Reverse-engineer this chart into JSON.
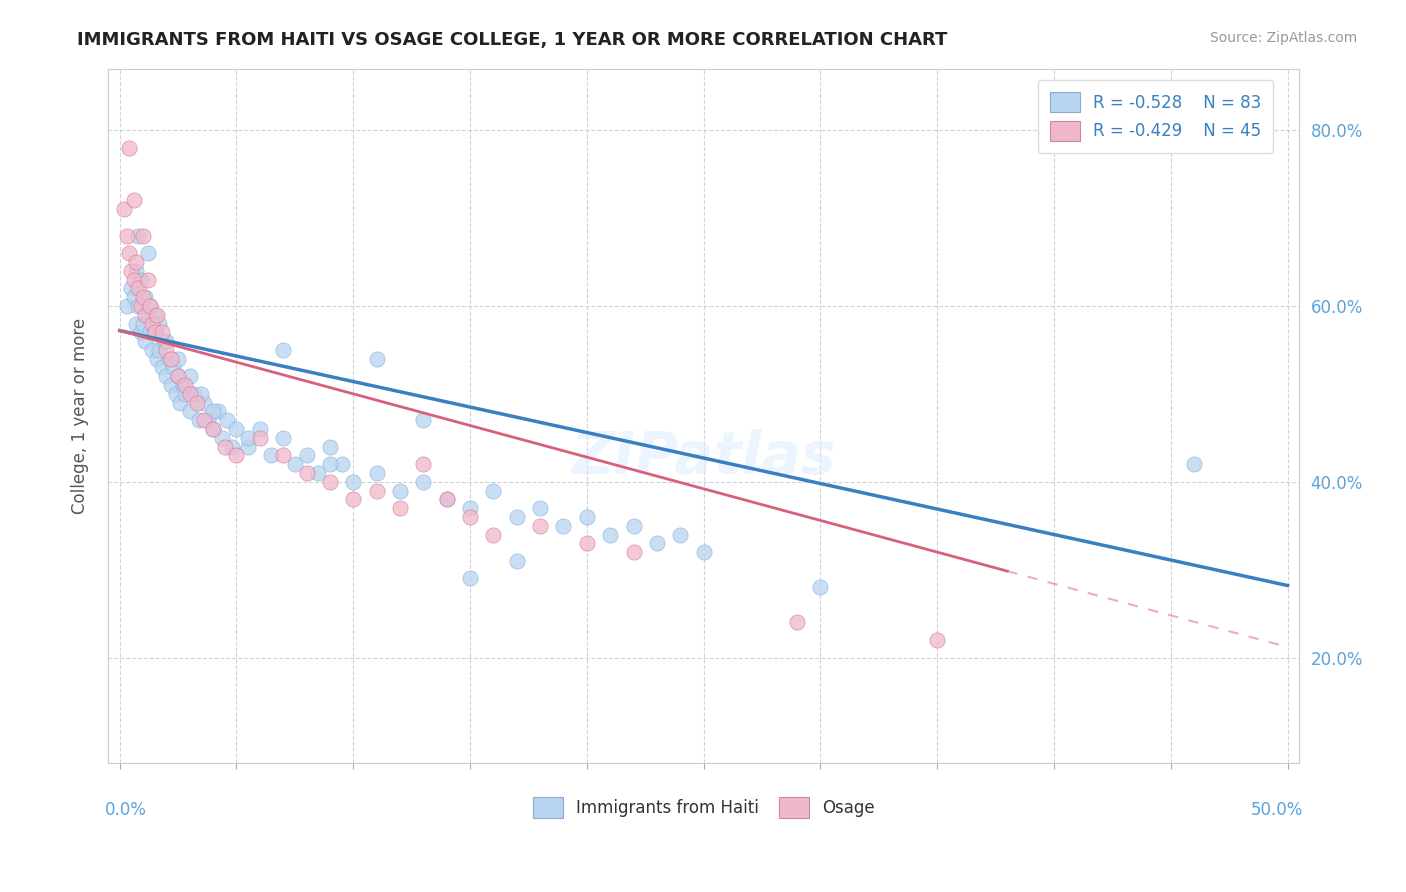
{
  "title": "IMMIGRANTS FROM HAITI VS OSAGE COLLEGE, 1 YEAR OR MORE CORRELATION CHART",
  "source_text": "Source: ZipAtlas.com",
  "ylabel": "College, 1 year or more",
  "watermark": "ZIPatlas",
  "xmin": 0.0,
  "xmax": 0.5,
  "ymin": 0.08,
  "ymax": 0.87,
  "haiti_intercept": 0.572,
  "haiti_slope": -0.58,
  "osage_intercept": 0.572,
  "osage_slope": -0.72,
  "osage_line_end": 0.38,
  "haiti_color": "#b8d4f0",
  "haiti_edge": "#7aaedc",
  "haiti_line_color": "#3a7fc1",
  "osage_color": "#f0b8cc",
  "osage_edge": "#d97090",
  "osage_line_color": "#d9607a",
  "haiti_x": [
    0.003,
    0.005,
    0.006,
    0.007,
    0.008,
    0.009,
    0.01,
    0.011,
    0.012,
    0.013,
    0.014,
    0.015,
    0.016,
    0.017,
    0.018,
    0.019,
    0.02,
    0.021,
    0.022,
    0.023,
    0.024,
    0.025,
    0.026,
    0.027,
    0.028,
    0.03,
    0.032,
    0.034,
    0.036,
    0.038,
    0.04,
    0.042,
    0.044,
    0.046,
    0.048,
    0.05,
    0.055,
    0.06,
    0.065,
    0.07,
    0.075,
    0.08,
    0.085,
    0.09,
    0.095,
    0.1,
    0.11,
    0.12,
    0.13,
    0.14,
    0.15,
    0.16,
    0.17,
    0.18,
    0.19,
    0.2,
    0.21,
    0.22,
    0.23,
    0.24,
    0.007,
    0.009,
    0.011,
    0.013,
    0.015,
    0.017,
    0.02,
    0.025,
    0.03,
    0.035,
    0.04,
    0.055,
    0.07,
    0.09,
    0.11,
    0.13,
    0.15,
    0.17,
    0.008,
    0.012,
    0.25,
    0.3,
    0.46
  ],
  "haiti_y": [
    0.6,
    0.62,
    0.61,
    0.58,
    0.6,
    0.57,
    0.58,
    0.56,
    0.59,
    0.57,
    0.55,
    0.57,
    0.54,
    0.55,
    0.53,
    0.56,
    0.52,
    0.54,
    0.51,
    0.53,
    0.5,
    0.52,
    0.49,
    0.51,
    0.5,
    0.48,
    0.5,
    0.47,
    0.49,
    0.47,
    0.46,
    0.48,
    0.45,
    0.47,
    0.44,
    0.46,
    0.44,
    0.46,
    0.43,
    0.45,
    0.42,
    0.43,
    0.41,
    0.44,
    0.42,
    0.4,
    0.41,
    0.39,
    0.4,
    0.38,
    0.37,
    0.39,
    0.36,
    0.37,
    0.35,
    0.36,
    0.34,
    0.35,
    0.33,
    0.34,
    0.64,
    0.63,
    0.61,
    0.6,
    0.59,
    0.58,
    0.56,
    0.54,
    0.52,
    0.5,
    0.48,
    0.45,
    0.55,
    0.42,
    0.54,
    0.47,
    0.29,
    0.31,
    0.68,
    0.66,
    0.32,
    0.28,
    0.42
  ],
  "osage_x": [
    0.002,
    0.003,
    0.004,
    0.005,
    0.006,
    0.007,
    0.008,
    0.009,
    0.01,
    0.011,
    0.012,
    0.013,
    0.014,
    0.015,
    0.016,
    0.018,
    0.02,
    0.022,
    0.025,
    0.028,
    0.03,
    0.033,
    0.036,
    0.04,
    0.045,
    0.05,
    0.06,
    0.07,
    0.08,
    0.09,
    0.1,
    0.11,
    0.12,
    0.13,
    0.14,
    0.15,
    0.16,
    0.18,
    0.2,
    0.22,
    0.004,
    0.006,
    0.01,
    0.29,
    0.35
  ],
  "osage_y": [
    0.71,
    0.68,
    0.66,
    0.64,
    0.63,
    0.65,
    0.62,
    0.6,
    0.61,
    0.59,
    0.63,
    0.6,
    0.58,
    0.57,
    0.59,
    0.57,
    0.55,
    0.54,
    0.52,
    0.51,
    0.5,
    0.49,
    0.47,
    0.46,
    0.44,
    0.43,
    0.45,
    0.43,
    0.41,
    0.4,
    0.38,
    0.39,
    0.37,
    0.42,
    0.38,
    0.36,
    0.34,
    0.35,
    0.33,
    0.32,
    0.78,
    0.72,
    0.68,
    0.24,
    0.22
  ]
}
